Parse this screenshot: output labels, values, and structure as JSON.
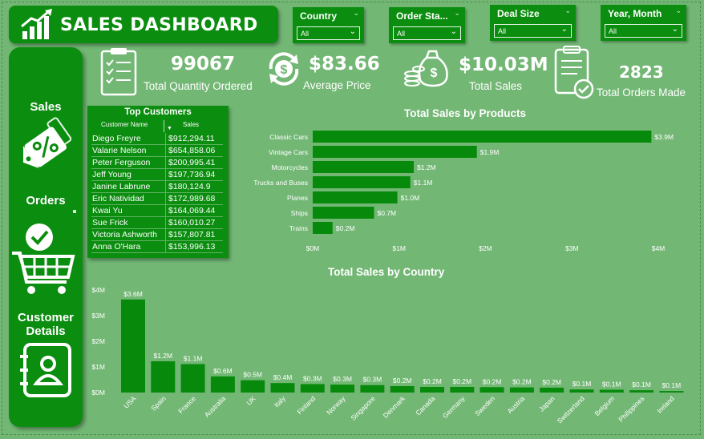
{
  "header": {
    "title": "SALES DASHBOARD"
  },
  "slicers": [
    {
      "label": "Country",
      "value": "All"
    },
    {
      "label": "Order Sta...",
      "value": "All"
    },
    {
      "label": "Deal Size",
      "value": "All"
    },
    {
      "label": "Year, Month",
      "value": "All"
    }
  ],
  "sidebar": {
    "items": [
      {
        "label": "Sales",
        "icon": "discount-tag-icon"
      },
      {
        "label": "Orders",
        "icon": "shopping-cart-check-icon"
      },
      {
        "label": "Customer",
        "label2": "Details",
        "icon": "contact-book-icon"
      }
    ]
  },
  "kpis": [
    {
      "value": "99067",
      "label": "Total Quantity Ordered",
      "icon": "clipboard-checklist-icon"
    },
    {
      "value": "$83.66",
      "label": "Average Price",
      "icon": "dollar-cycle-icon"
    },
    {
      "value": "$10.03M",
      "label": "Total Sales",
      "icon": "money-bag-coins-icon"
    },
    {
      "value": "2823",
      "label": "Total Orders Made",
      "icon": "clipboard-verified-icon"
    }
  ],
  "top_customers": {
    "title": "Top Customers",
    "columns": [
      "Customer Name",
      "Sales"
    ],
    "rows": [
      [
        "Diego Freyre",
        "$912,294.11"
      ],
      [
        "Valarie Nelson",
        "$654,858.06"
      ],
      [
        "Peter Ferguson",
        "$200,995.41"
      ],
      [
        "Jeff Young",
        "$197,736.94"
      ],
      [
        "Janine Labrune",
        "$180,124.9"
      ],
      [
        "Eric Natividad",
        "$172,989.68"
      ],
      [
        "Kwai Yu",
        "$164,069.44"
      ],
      [
        "Sue Frick",
        "$160,010.27"
      ],
      [
        "Victoria Ashworth",
        "$157,807.81"
      ],
      [
        "Anna O'Hara",
        "$153,996.13"
      ]
    ]
  },
  "colors": {
    "background": "#73b775",
    "card": "#0b8d0f",
    "bar": "#078a0b",
    "text": "#ffffff"
  },
  "chart_data": [
    {
      "type": "bar",
      "orientation": "horizontal",
      "title": "Total Sales by Products",
      "categories": [
        "Classic Cars",
        "Vintage Cars",
        "Motorcycles",
        "Trucks and Buses",
        "Planes",
        "Ships",
        "Trains"
      ],
      "values": [
        3.92,
        1.9,
        1.17,
        1.13,
        0.98,
        0.71,
        0.23
      ],
      "data_labels": [
        "$3.9M",
        "$1.9M",
        "$1.2M",
        "$1.1M",
        "$1.0M",
        "$0.7M",
        "$0.2M"
      ],
      "x_ticks": [
        "$0M",
        "$1M",
        "$2M",
        "$3M",
        "$4M"
      ],
      "xlim": [
        0,
        4
      ]
    },
    {
      "type": "bar",
      "orientation": "vertical",
      "title": "Total Sales by Country",
      "categories": [
        "USA",
        "Spain",
        "France",
        "Australia",
        "UK",
        "Italy",
        "Finland",
        "Norway",
        "Singapore",
        "Denmark",
        "Canada",
        "Germany",
        "Sweden",
        "Austria",
        "Japan",
        "Switzerland",
        "Belgium",
        "Philippines",
        "Ireland"
      ],
      "values": [
        3.63,
        1.22,
        1.11,
        0.63,
        0.48,
        0.37,
        0.33,
        0.31,
        0.29,
        0.25,
        0.22,
        0.22,
        0.21,
        0.2,
        0.19,
        0.12,
        0.11,
        0.09,
        0.06
      ],
      "data_labels": [
        "$3.6M",
        "$1.2M",
        "$1.1M",
        "$0.6M",
        "$0.5M",
        "$0.4M",
        "$0.3M",
        "$0.3M",
        "$0.3M",
        "$0.2M",
        "$0.2M",
        "$0.2M",
        "$0.2M",
        "$0.2M",
        "$0.2M",
        "$0.1M",
        "$0.1M",
        "$0.1M",
        "$0.1M"
      ],
      "y_ticks": [
        "$0M",
        "$1M",
        "$2M",
        "$3M",
        "$4M"
      ],
      "ylim": [
        0,
        4
      ]
    }
  ]
}
